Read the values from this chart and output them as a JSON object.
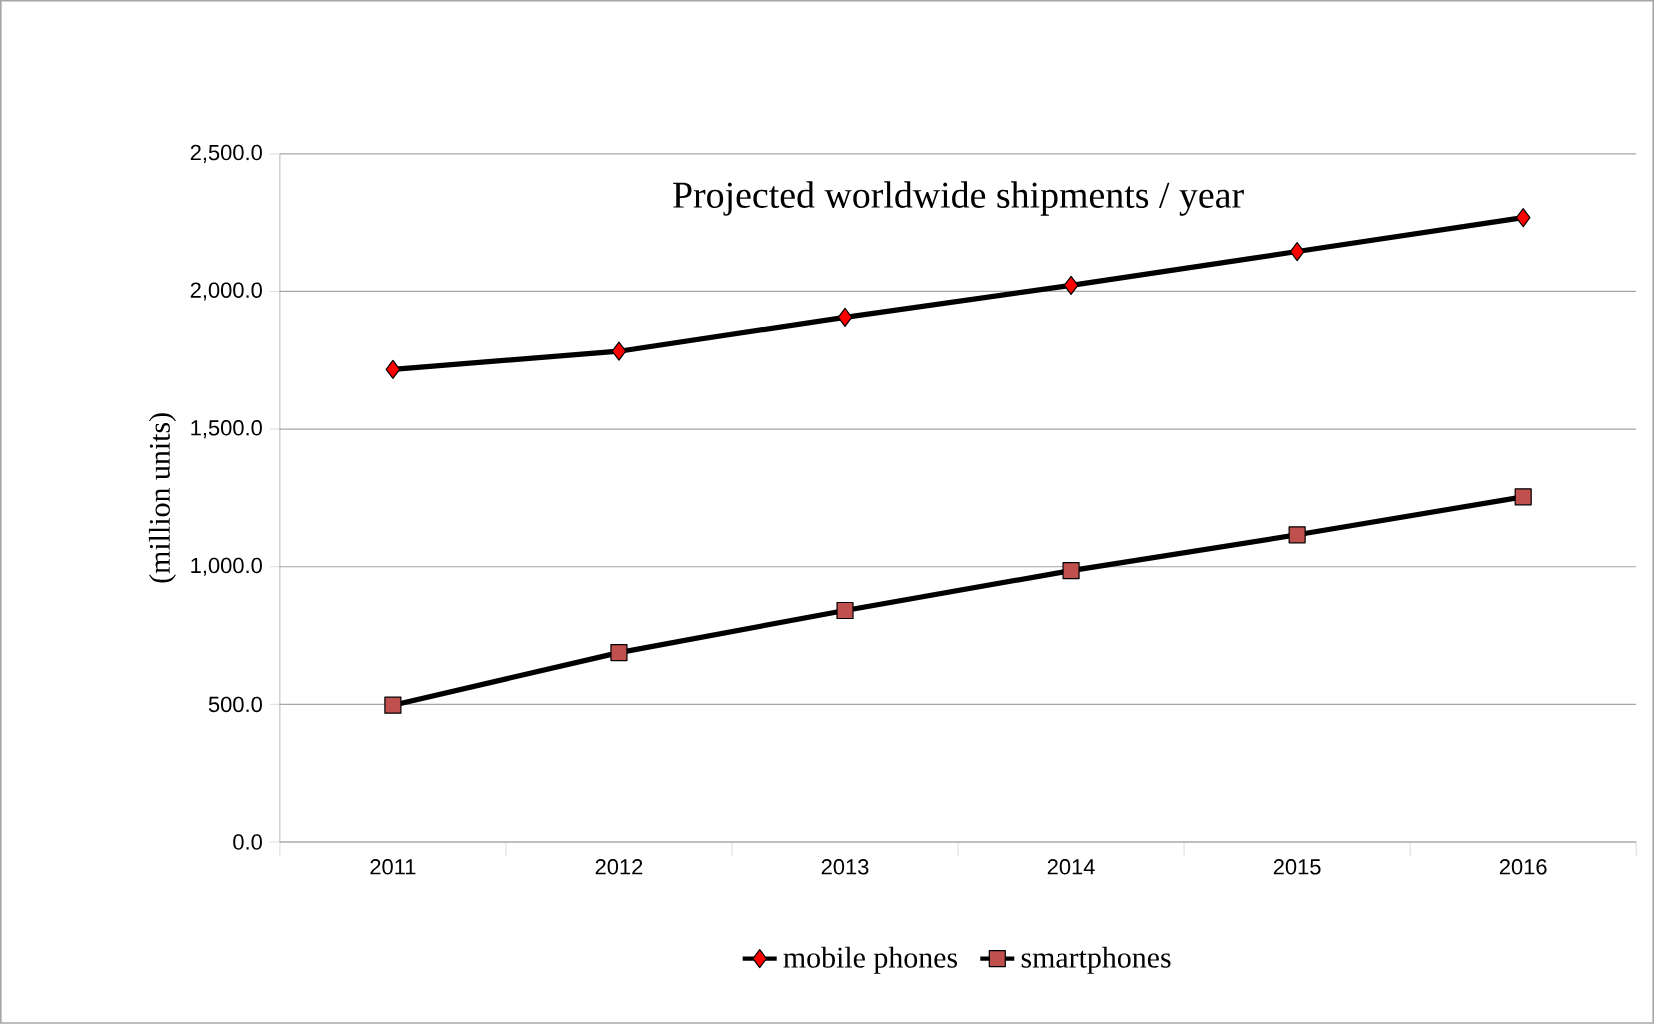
{
  "chart_data": {
    "type": "line",
    "title": "Projected worldwide shipments / year",
    "ylabel": "(million units)",
    "categories": [
      "2011",
      "2012",
      "2013",
      "2014",
      "2015",
      "2016"
    ],
    "series": [
      {
        "name": "mobile phones",
        "color": "#ff0000",
        "marker": "diamond",
        "values": [
          1717,
          1783,
          1906,
          2022,
          2145,
          2268
        ]
      },
      {
        "name": "smartphones",
        "color": "#c0504d",
        "marker": "square",
        "values": [
          497,
          688,
          841,
          986,
          1116,
          1254
        ]
      }
    ],
    "ylim": [
      0,
      2500
    ],
    "yticks": [
      {
        "value": 0,
        "label": "0.0"
      },
      {
        "value": 500,
        "label": "500.0"
      },
      {
        "value": 1000,
        "label": "1,000.0"
      },
      {
        "value": 1500,
        "label": "1,500.0"
      },
      {
        "value": 2000,
        "label": "2,000.0"
      },
      {
        "value": 2500,
        "label": "2,500.0"
      }
    ],
    "grid": "y",
    "legend": "bottom",
    "line_style": "solid"
  }
}
